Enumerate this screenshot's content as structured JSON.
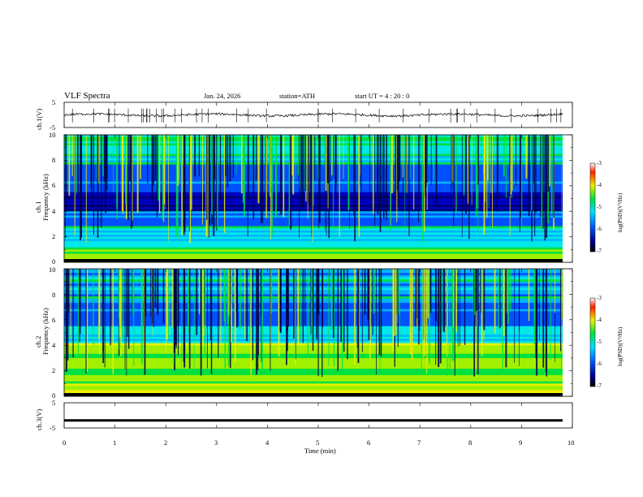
{
  "header": {
    "title": "VLF  Spectra",
    "date": "Jan. 24, 2026",
    "station": "station=ATH",
    "start": "start  UT  =   4  : 20 : 0"
  },
  "colors": {
    "low": "#000080",
    "mid": "#00c8ff",
    "green": "#00e040",
    "yellow": "#f0f000",
    "red": "#e00000"
  },
  "chart_data": [
    {
      "type": "line",
      "name": "ch1-waveform",
      "ylabel": "ch.1(V)",
      "ylim": [
        -5,
        5
      ],
      "yticks": [
        "5",
        "-5"
      ],
      "xlim": [
        0,
        10
      ],
      "level": 0
    },
    {
      "type": "heatmap",
      "name": "ch1-spectrogram",
      "ylabel_top": "ch.1",
      "ylabel_bottom": "Frequency  (kHz)",
      "ylim": [
        0,
        10
      ],
      "yticks": [
        "0",
        "2",
        "4",
        "6",
        "8",
        "10"
      ],
      "colorbar": {
        "label": "log(PSD)(V²/Hz)",
        "range": [
          -7,
          -3
        ],
        "ticks": [
          "-3",
          "-4",
          "-5",
          "-6",
          "-7"
        ]
      }
    },
    {
      "type": "heatmap",
      "name": "ch2-spectrogram",
      "ylabel_top": "ch.2",
      "ylabel_bottom": "Frequency  (kHz)",
      "ylim": [
        0,
        10
      ],
      "yticks": [
        "0",
        "2",
        "4",
        "6",
        "8",
        "10"
      ],
      "colorbar": {
        "label": "log(PSD)(V²/Hz)",
        "range": [
          -7,
          -3
        ],
        "ticks": [
          "-3",
          "-4",
          "-5",
          "-6",
          "-7"
        ]
      }
    },
    {
      "type": "line",
      "name": "ch3-waveform",
      "ylabel": "ch.3(V)",
      "ylim": [
        -5,
        5
      ],
      "yticks": [
        "5",
        "-5"
      ],
      "level": -2
    }
  ],
  "xaxis": {
    "label": "Time  (min)",
    "ticks": [
      "0",
      "1",
      "2",
      "3",
      "4",
      "5",
      "6",
      "7",
      "8",
      "9",
      "10"
    ]
  }
}
